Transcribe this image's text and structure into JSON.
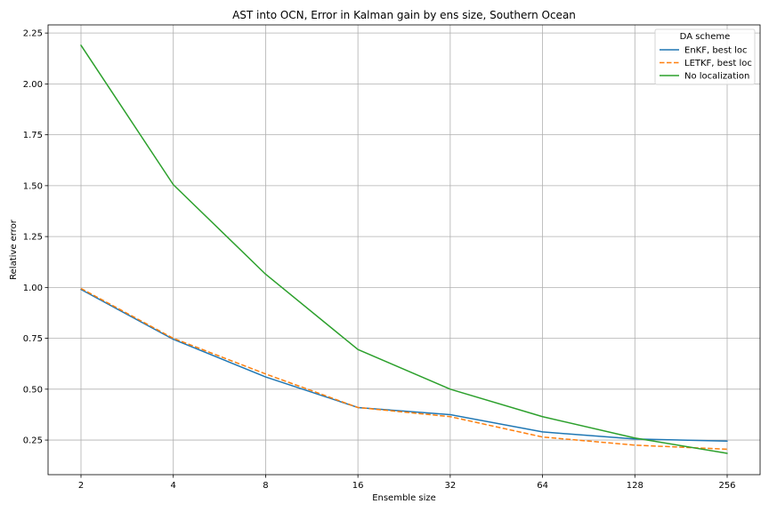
{
  "chart_data": {
    "type": "line",
    "title": "AST into OCN, Error in Kalman gain by ens size, Southern Ocean",
    "xlabel": "Ensemble size",
    "ylabel": "Relative error",
    "x_scale": "log2",
    "categories": [
      "2",
      "4",
      "8",
      "16",
      "32",
      "64",
      "128",
      "256"
    ],
    "x": [
      2,
      4,
      8,
      16,
      32,
      64,
      128,
      256
    ],
    "ylim": [
      0.08,
      2.29
    ],
    "yticks": [
      "0.25",
      "0.50",
      "0.75",
      "1.00",
      "1.25",
      "1.50",
      "1.75",
      "2.00",
      "2.25"
    ],
    "grid": true,
    "legend": {
      "title": "DA scheme",
      "position": "top-right"
    },
    "series": [
      {
        "name": "EnKF, best loc",
        "color": "#1f77b4",
        "style": "solid",
        "values": [
          0.99,
          0.745,
          0.56,
          0.41,
          0.375,
          0.29,
          0.255,
          0.245
        ]
      },
      {
        "name": "LETKF, best loc",
        "color": "#ff7f0e",
        "style": "dashed",
        "values": [
          0.995,
          0.75,
          0.575,
          0.41,
          0.365,
          0.265,
          0.225,
          0.205
        ]
      },
      {
        "name": "No localization",
        "color": "#2ca02c",
        "style": "solid",
        "values": [
          2.19,
          1.505,
          1.065,
          0.695,
          0.5,
          0.365,
          0.26,
          0.185
        ]
      }
    ]
  }
}
